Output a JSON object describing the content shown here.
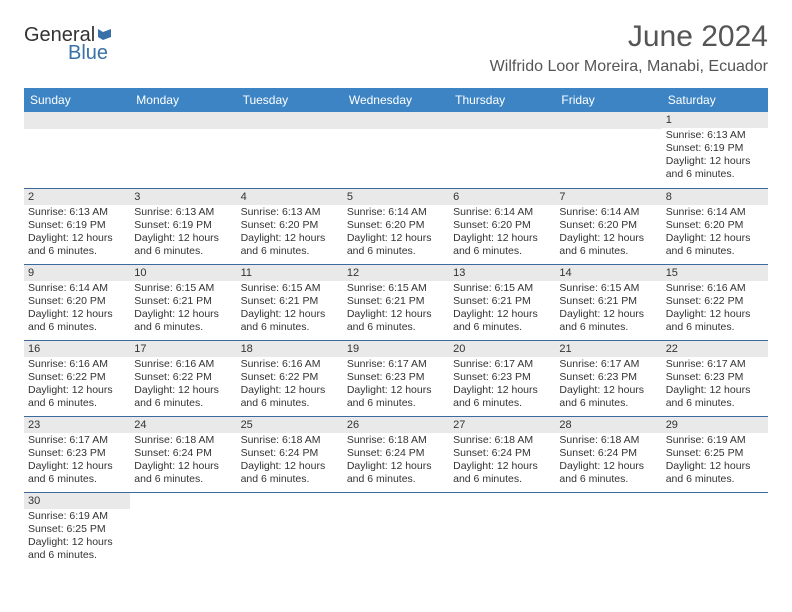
{
  "logo": {
    "text1": "General",
    "text2": "Blue",
    "icon_color": "#3871a8"
  },
  "title": "June 2024",
  "location": "Wilfrido Loor Moreira, Manabi, Ecuador",
  "header_bg": "#3d84c4",
  "header_fg": "#ffffff",
  "daynum_bg": "#e9e9e9",
  "border_color": "#3d6a9e",
  "text_color": "#333333",
  "columns": [
    "Sunday",
    "Monday",
    "Tuesday",
    "Wednesday",
    "Thursday",
    "Friday",
    "Saturday"
  ],
  "weeks": [
    [
      null,
      null,
      null,
      null,
      null,
      null,
      {
        "n": "1",
        "sr": "6:13 AM",
        "ss": "6:19 PM",
        "dl": "12 hours and 6 minutes."
      }
    ],
    [
      {
        "n": "2",
        "sr": "6:13 AM",
        "ss": "6:19 PM",
        "dl": "12 hours and 6 minutes."
      },
      {
        "n": "3",
        "sr": "6:13 AM",
        "ss": "6:19 PM",
        "dl": "12 hours and 6 minutes."
      },
      {
        "n": "4",
        "sr": "6:13 AM",
        "ss": "6:20 PM",
        "dl": "12 hours and 6 minutes."
      },
      {
        "n": "5",
        "sr": "6:14 AM",
        "ss": "6:20 PM",
        "dl": "12 hours and 6 minutes."
      },
      {
        "n": "6",
        "sr": "6:14 AM",
        "ss": "6:20 PM",
        "dl": "12 hours and 6 minutes."
      },
      {
        "n": "7",
        "sr": "6:14 AM",
        "ss": "6:20 PM",
        "dl": "12 hours and 6 minutes."
      },
      {
        "n": "8",
        "sr": "6:14 AM",
        "ss": "6:20 PM",
        "dl": "12 hours and 6 minutes."
      }
    ],
    [
      {
        "n": "9",
        "sr": "6:14 AM",
        "ss": "6:20 PM",
        "dl": "12 hours and 6 minutes."
      },
      {
        "n": "10",
        "sr": "6:15 AM",
        "ss": "6:21 PM",
        "dl": "12 hours and 6 minutes."
      },
      {
        "n": "11",
        "sr": "6:15 AM",
        "ss": "6:21 PM",
        "dl": "12 hours and 6 minutes."
      },
      {
        "n": "12",
        "sr": "6:15 AM",
        "ss": "6:21 PM",
        "dl": "12 hours and 6 minutes."
      },
      {
        "n": "13",
        "sr": "6:15 AM",
        "ss": "6:21 PM",
        "dl": "12 hours and 6 minutes."
      },
      {
        "n": "14",
        "sr": "6:15 AM",
        "ss": "6:21 PM",
        "dl": "12 hours and 6 minutes."
      },
      {
        "n": "15",
        "sr": "6:16 AM",
        "ss": "6:22 PM",
        "dl": "12 hours and 6 minutes."
      }
    ],
    [
      {
        "n": "16",
        "sr": "6:16 AM",
        "ss": "6:22 PM",
        "dl": "12 hours and 6 minutes."
      },
      {
        "n": "17",
        "sr": "6:16 AM",
        "ss": "6:22 PM",
        "dl": "12 hours and 6 minutes."
      },
      {
        "n": "18",
        "sr": "6:16 AM",
        "ss": "6:22 PM",
        "dl": "12 hours and 6 minutes."
      },
      {
        "n": "19",
        "sr": "6:17 AM",
        "ss": "6:23 PM",
        "dl": "12 hours and 6 minutes."
      },
      {
        "n": "20",
        "sr": "6:17 AM",
        "ss": "6:23 PM",
        "dl": "12 hours and 6 minutes."
      },
      {
        "n": "21",
        "sr": "6:17 AM",
        "ss": "6:23 PM",
        "dl": "12 hours and 6 minutes."
      },
      {
        "n": "22",
        "sr": "6:17 AM",
        "ss": "6:23 PM",
        "dl": "12 hours and 6 minutes."
      }
    ],
    [
      {
        "n": "23",
        "sr": "6:17 AM",
        "ss": "6:23 PM",
        "dl": "12 hours and 6 minutes."
      },
      {
        "n": "24",
        "sr": "6:18 AM",
        "ss": "6:24 PM",
        "dl": "12 hours and 6 minutes."
      },
      {
        "n": "25",
        "sr": "6:18 AM",
        "ss": "6:24 PM",
        "dl": "12 hours and 6 minutes."
      },
      {
        "n": "26",
        "sr": "6:18 AM",
        "ss": "6:24 PM",
        "dl": "12 hours and 6 minutes."
      },
      {
        "n": "27",
        "sr": "6:18 AM",
        "ss": "6:24 PM",
        "dl": "12 hours and 6 minutes."
      },
      {
        "n": "28",
        "sr": "6:18 AM",
        "ss": "6:24 PM",
        "dl": "12 hours and 6 minutes."
      },
      {
        "n": "29",
        "sr": "6:19 AM",
        "ss": "6:25 PM",
        "dl": "12 hours and 6 minutes."
      }
    ],
    [
      {
        "n": "30",
        "sr": "6:19 AM",
        "ss": "6:25 PM",
        "dl": "12 hours and 6 minutes."
      },
      null,
      null,
      null,
      null,
      null,
      null
    ]
  ],
  "labels": {
    "sunrise": "Sunrise:",
    "sunset": "Sunset:",
    "daylight": "Daylight:"
  }
}
